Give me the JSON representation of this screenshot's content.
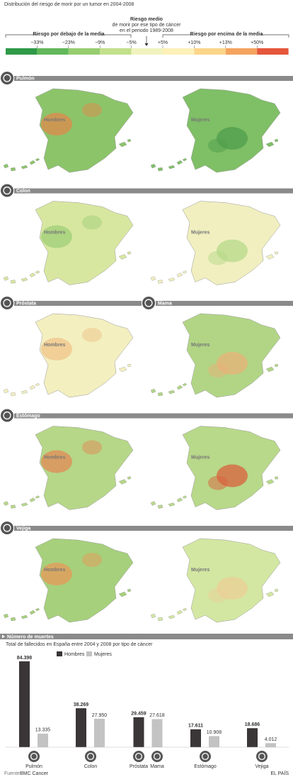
{
  "header": {
    "title": "Distribución del riesgo de morir por un tumor en 2004-2008",
    "mid_lines": [
      "Riesgo medio",
      "de morir por ese tipo de cáncer",
      "en el periodo 1989-2008"
    ]
  },
  "legend": {
    "below": "Riesgo por debajo de la media",
    "above": "Riesgo por encima de la media",
    "labels": [
      "−33%",
      "−23%",
      "−9%",
      "−5%",
      "+5%",
      "+10%",
      "+13%",
      "+50%"
    ],
    "colors": [
      "#2f9a48",
      "#62b85a",
      "#97cd6f",
      "#c3e08c",
      "#f1f3bf",
      "#fdf0b8",
      "#fbd58a",
      "#f4a45f",
      "#e5573c"
    ]
  },
  "sections": [
    {
      "headers": [
        "Pulmón"
      ],
      "labels": [
        "Hombres",
        "Mujeres"
      ],
      "tints": [
        [
          "#8cc46a",
          "#e08a4c"
        ],
        [
          "#7fbf66",
          "#4f9e4c"
        ]
      ]
    },
    {
      "headers": [
        "Colon"
      ],
      "labels": [
        "Hombres",
        "Mujeres"
      ],
      "tints": [
        [
          "#d8e7a0",
          "#9fcf78"
        ],
        [
          "#f1efbf",
          "#b5d98a"
        ]
      ]
    },
    {
      "headers": [
        "Próstata",
        "Mama"
      ],
      "labels": [
        "Hombres",
        "Mujeres"
      ],
      "tints": [
        [
          "#f3efbf",
          "#f0c489"
        ],
        [
          "#b1d585",
          "#eab279"
        ]
      ]
    },
    {
      "headers": [
        "Estómago"
      ],
      "labels": [
        "Hombres",
        "Mujeres"
      ],
      "tints": [
        [
          "#b6d788",
          "#e18a55"
        ],
        [
          "#b8d88a",
          "#d9613e"
        ]
      ]
    },
    {
      "headers": [
        "Vejiga"
      ],
      "labels": [
        "Hombres",
        "Mujeres"
      ],
      "tints": [
        [
          "#a6d07c",
          "#e79a5a"
        ],
        [
          "#d3e7a2",
          "#eccf95"
        ]
      ]
    }
  ],
  "chart_data": {
    "type": "bar",
    "title": "Número de muertes",
    "subtitle": "Total de fallecidos en España entre 2004 y 2008 por tipo de cáncer",
    "categories": [
      "Pulmón",
      "Colon",
      "Próstata",
      "Mama",
      "Estómago",
      "Vejiga"
    ],
    "series": [
      {
        "name": "Hombres",
        "color": "#3a3536",
        "values": [
          84398,
          38269,
          29459,
          null,
          17611,
          18686
        ],
        "value_labels": [
          "84.398",
          "38.269",
          "29.459",
          null,
          "17.611",
          "18.686"
        ]
      },
      {
        "name": "Mujeres",
        "color": "#c3c3c3",
        "values": [
          13335,
          27950,
          null,
          27618,
          10908,
          4012
        ],
        "value_labels": [
          "13.335",
          "27.950",
          null,
          "27.618",
          "10.908",
          "4.012"
        ]
      }
    ]
  },
  "footer": {
    "source_label": "Fuente",
    "source": "BMC Cancer",
    "brand": "EL PAÍS"
  }
}
